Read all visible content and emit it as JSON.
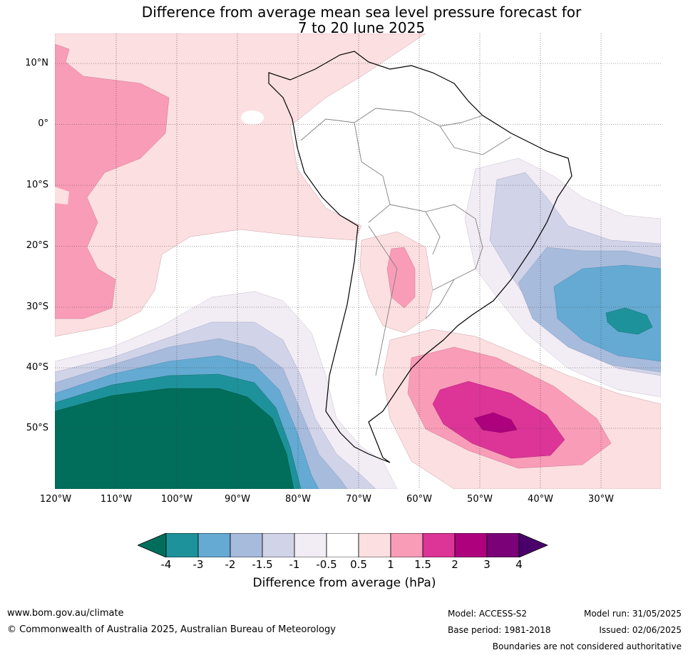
{
  "title": {
    "line1": "Difference from average mean sea level pressure forecast for",
    "line2": "7 to 20 June 2025"
  },
  "map": {
    "region": "South America",
    "lat_labels": [
      "10°N",
      "0°",
      "10°S",
      "20°S",
      "30°S",
      "40°S",
      "50°S"
    ],
    "lon_labels": [
      "120°W",
      "110°W",
      "100°W",
      "90°W",
      "80°W",
      "70°W",
      "60°W",
      "50°W",
      "40°W",
      "30°W"
    ],
    "gridlines": "dotted",
    "fill_colors": {
      "below_-4": "#006e5a",
      "-4_-3": "#1e929a",
      "-3_-2": "#64aad2",
      "-2_-1.5": "#a7bbdc",
      "-1.5_-1": "#d1d3e8",
      "-1_-0.5": "#f2ecf5",
      "-0.5_0.5": "#ffffff",
      "0.5_1": "#fcdfe0",
      "1_1.5": "#f99cb8",
      "1.5_2": "#dd3497",
      "2_3": "#ae017e",
      "3_4": "#7a0177",
      "above_4": "#49006a"
    }
  },
  "colorbar": {
    "ticks": [
      "-4",
      "-3",
      "-2",
      "-1.5",
      "-1",
      "-0.5",
      "0.5",
      "1",
      "1.5",
      "2",
      "3",
      "4"
    ],
    "colors": [
      "#006e5a",
      "#1e929a",
      "#64aad2",
      "#a7bbdc",
      "#d1d3e8",
      "#f2ecf5",
      "#ffffff",
      "#fcdfe0",
      "#f99cb8",
      "#dd3497",
      "#ae017e",
      "#7a0177",
      "#49006a"
    ],
    "label": "Difference from average (hPa)"
  },
  "footer": {
    "website": "www.bom.gov.au/climate",
    "copyright": "© Commonwealth of Australia 2025, Australian Bureau of Meteorology",
    "model": "Model: ACCESS-S2",
    "base_period": "Base period: 1981-2018",
    "model_run": "Model run: 31/05/2025",
    "issued": "Issued: 02/06/2025",
    "disclaimer": "Boundaries are not considered authoritative"
  }
}
